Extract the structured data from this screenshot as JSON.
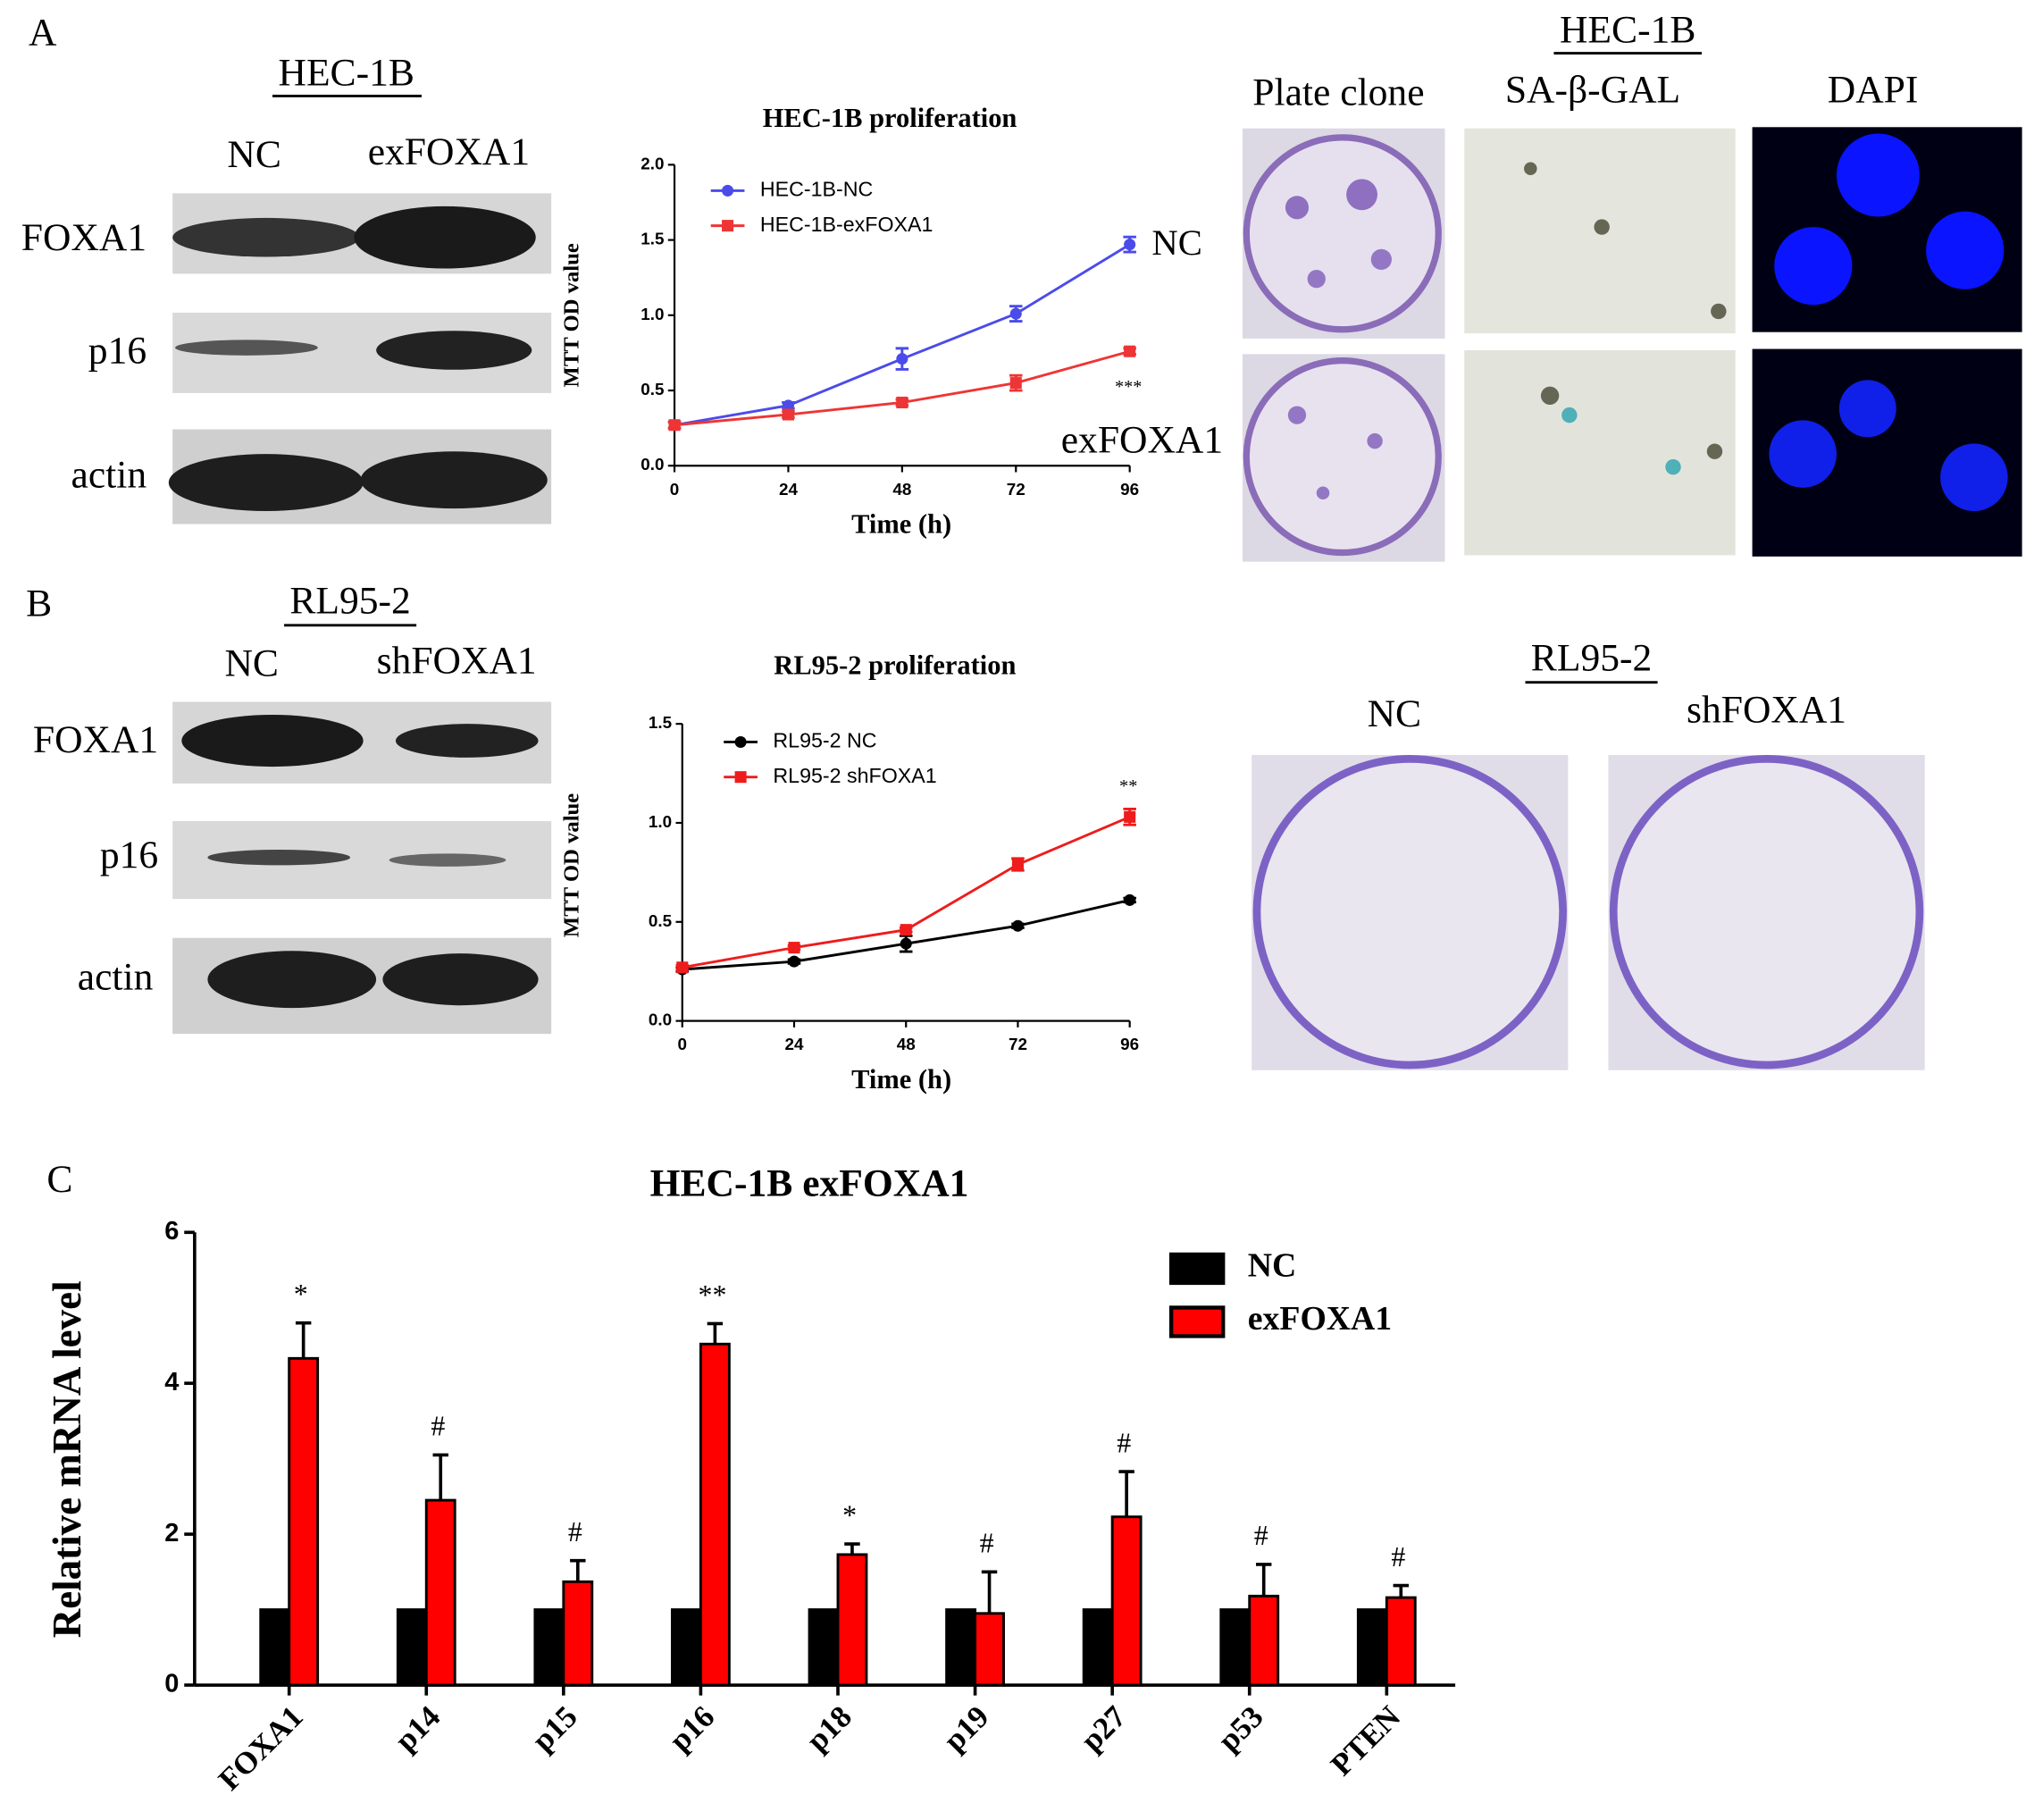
{
  "figure": {
    "panel_labels": [
      "A",
      "B",
      "C"
    ],
    "blot_a": {
      "title": "HEC-1B",
      "lanes": [
        "NC",
        "exFOXA1"
      ],
      "rows": [
        "FOXA1",
        "p16",
        "actin"
      ]
    },
    "images_a": {
      "title": "HEC-1B",
      "columns": [
        "Plate clone",
        "SA-β-GAL",
        "DAPI"
      ]
    },
    "blot_b": {
      "title": "RL95-2",
      "lanes": [
        "NC",
        "shFOXA1"
      ],
      "rows": [
        "FOXA1",
        "p16",
        "actin"
      ]
    },
    "plates_b": {
      "title": "RL95-2",
      "columns": [
        "NC",
        "shFOXA1"
      ]
    }
  },
  "chart_data": [
    {
      "type": "line",
      "title": "HEC-1B proliferation",
      "x_label": "Time (h)",
      "y_label": "MTT OD value",
      "x": [
        0,
        24,
        48,
        72,
        96
      ],
      "xlim": [
        0,
        96
      ],
      "xticks": [
        0,
        24,
        48,
        72,
        96
      ],
      "ylim": [
        0,
        2.0
      ],
      "yticks": [
        {
          "value": 0,
          "label": "0.0"
        },
        {
          "value": 0.5,
          "label": "0.5"
        },
        {
          "value": 1,
          "label": "1.0"
        },
        {
          "value": 1.5,
          "label": "1.5"
        },
        {
          "value": 2,
          "label": "2.0"
        }
      ],
      "series": [
        {
          "name": "HEC-1B-NC",
          "color": "#4b4bea",
          "values": [
            0.27,
            0.4,
            0.71,
            1.01,
            1.47
          ],
          "errors": [
            0.02,
            0.02,
            0.07,
            0.05,
            0.05
          ]
        },
        {
          "name": "HEC-1B-exFOXA1",
          "color": "#ee3535",
          "values": [
            0.27,
            0.34,
            0.42,
            0.55,
            0.76
          ],
          "errors": [
            0.02,
            0.02,
            0.02,
            0.05,
            0.02
          ]
        }
      ],
      "annotations": [
        "NC",
        "exFOXA1",
        "***"
      ]
    },
    {
      "type": "line",
      "title": "RL95-2 proliferation",
      "x_label": "Time (h)",
      "y_label": "MTT OD value",
      "x": [
        0,
        24,
        48,
        72,
        96
      ],
      "xlim": [
        0,
        96
      ],
      "xticks": [
        0,
        24,
        48,
        72,
        96
      ],
      "ylim": [
        0,
        1.5
      ],
      "yticks": [
        {
          "value": 0,
          "label": "0.0"
        },
        {
          "value": 0.5,
          "label": "0.5"
        },
        {
          "value": 1,
          "label": "1.0"
        },
        {
          "value": 1.5,
          "label": "1.5"
        }
      ],
      "series": [
        {
          "name": "RL95-2 NC",
          "color": "#000000",
          "values": [
            0.26,
            0.3,
            0.39,
            0.48,
            0.61
          ],
          "errors": [
            0.01,
            0.01,
            0.04,
            0.01,
            0.01
          ]
        },
        {
          "name": "RL95-2 shFOXA1",
          "color": "#ee1c1c",
          "values": [
            0.27,
            0.37,
            0.46,
            0.79,
            1.03
          ],
          "errors": [
            0.01,
            0.01,
            0.01,
            0.03,
            0.04
          ]
        }
      ],
      "annotations": [
        "**"
      ]
    },
    {
      "type": "bar",
      "title": "HEC-1B exFOXA1",
      "y_label": "Relative mRNA level",
      "categories": [
        "FOXA1",
        "p14",
        "p15",
        "p16",
        "p18",
        "p19",
        "p27",
        "p53",
        "PTEN"
      ],
      "ylim": [
        0,
        6
      ],
      "yticks": [
        0,
        2,
        4,
        6
      ],
      "series": [
        {
          "name": "NC",
          "color": "#000000",
          "values": [
            1,
            1,
            1,
            1,
            1,
            1,
            1,
            1,
            1
          ]
        },
        {
          "name": "exFOXA1",
          "color": "#ff0000",
          "values": [
            4.33,
            2.45,
            1.37,
            4.52,
            1.73,
            0.95,
            2.23,
            1.18,
            1.16
          ],
          "errors": [
            0.47,
            0.6,
            0.28,
            0.27,
            0.14,
            0.55,
            0.6,
            0.42,
            0.16
          ]
        }
      ],
      "significance": [
        "*",
        "#",
        "#",
        "**",
        "*",
        "#",
        "#",
        "#",
        "#"
      ]
    }
  ]
}
